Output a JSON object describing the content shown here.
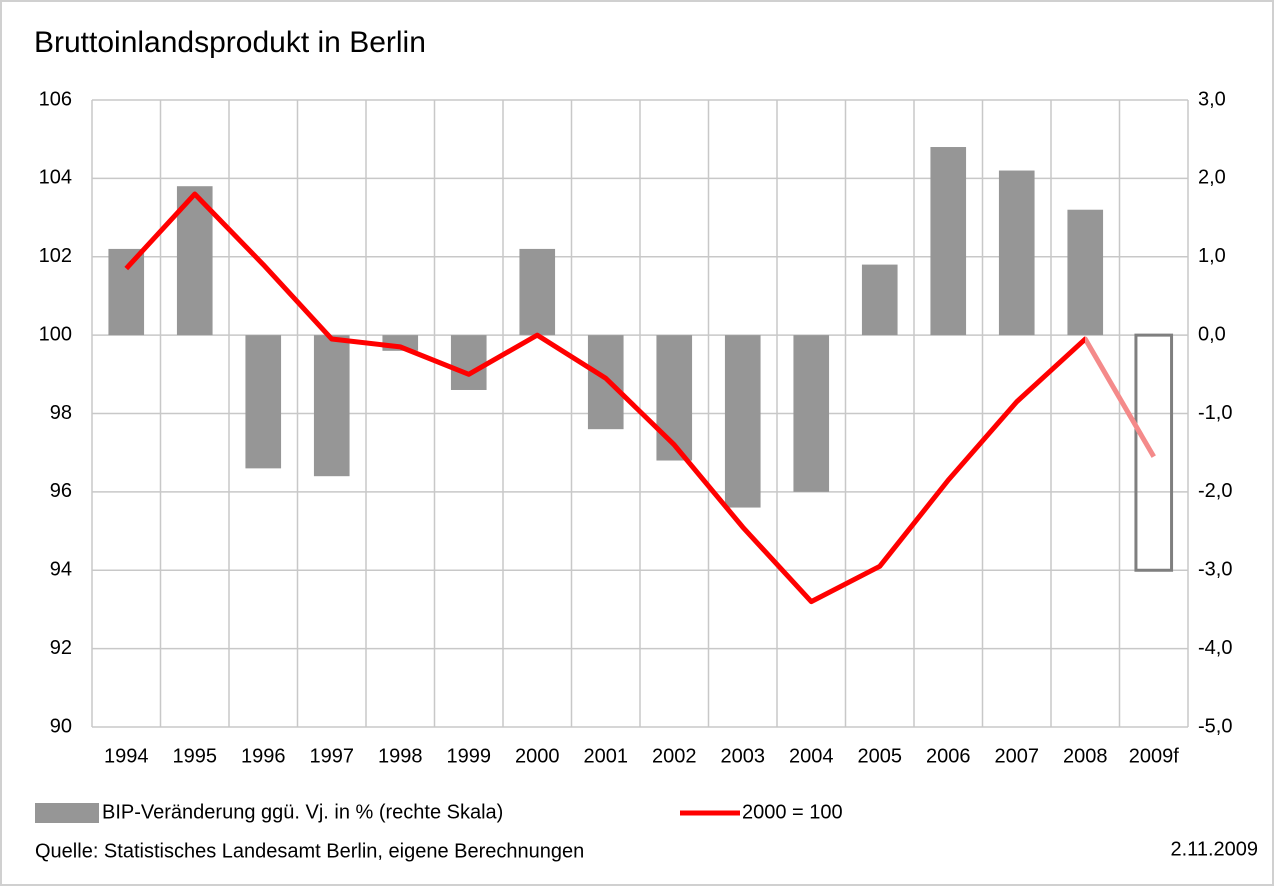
{
  "chart_data": {
    "type": "bar_line",
    "title": "Bruttoinlandsprodukt in Berlin",
    "categories": [
      "1994",
      "1995",
      "1996",
      "1997",
      "1998",
      "1999",
      "2000",
      "2001",
      "2002",
      "2003",
      "2004",
      "2005",
      "2006",
      "2007",
      "2008",
      "2009f"
    ],
    "series": [
      {
        "name": "BIP-Veränderung ggü. Vj. in % (rechte Skala)",
        "type": "bar",
        "axis": "y2",
        "color": "#969696",
        "values": [
          1.1,
          1.9,
          -1.7,
          -1.8,
          -0.2,
          -0.7,
          1.1,
          -1.2,
          -1.6,
          -2.2,
          -2.0,
          0.9,
          2.4,
          2.1,
          1.6,
          -3.0
        ]
      },
      {
        "name": "2000 = 100",
        "type": "line",
        "axis": "y",
        "color": "#ff0000",
        "values": [
          101.7,
          103.6,
          101.8,
          99.9,
          99.7,
          99.0,
          100.0,
          98.9,
          97.2,
          95.1,
          93.2,
          94.1,
          96.3,
          98.3,
          99.9,
          96.9
        ]
      }
    ],
    "forecast": {
      "index": 15,
      "bar_outline": "#7f7f7f",
      "line_color": "#f48a8a"
    },
    "ylim": [
      90,
      106
    ],
    "yticks": [
      90,
      92,
      94,
      96,
      98,
      100,
      102,
      104,
      106
    ],
    "y2lim": [
      -5,
      3
    ],
    "y2ticks": [
      {
        "value": -5,
        "label": "-5,0"
      },
      {
        "value": -4,
        "label": "-4,0"
      },
      {
        "value": -3,
        "label": "-3,0"
      },
      {
        "value": -2,
        "label": "-2,0"
      },
      {
        "value": -1,
        "label": "-1,0"
      },
      {
        "value": 0,
        "label": "0,0"
      },
      {
        "value": 1,
        "label": "1,0"
      },
      {
        "value": 2,
        "label": "2,0"
      },
      {
        "value": 3,
        "label": "3,0"
      }
    ],
    "grid": true,
    "legend": "bottom",
    "source": "Quelle: Statistisches Landesamt Berlin, eigene Berechnungen",
    "date": "2.11.2009"
  }
}
